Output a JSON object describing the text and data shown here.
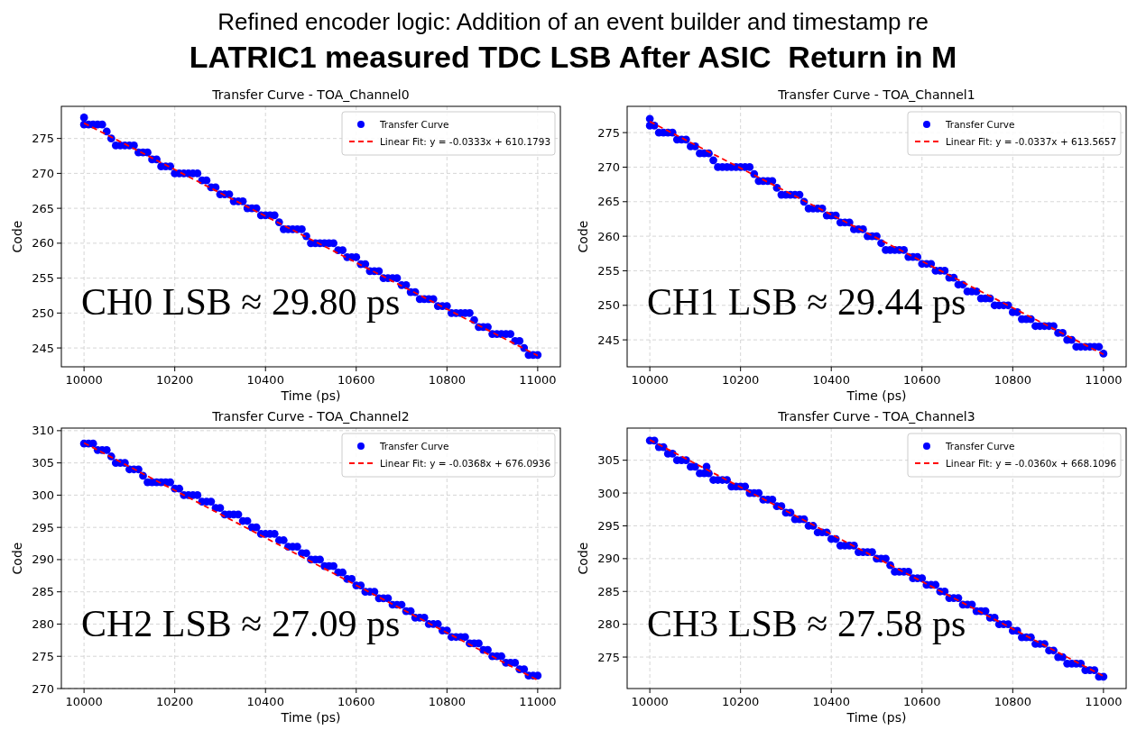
{
  "chart_data": [
    {
      "type": "other",
      "title": "Refined encoder logic: Addition of an event builder and timestamp re",
      "subtitle": "LATRIC1 measured TDC LSB After ASIC  Return in M"
    },
    {
      "type": "scatter",
      "title": "Transfer Curve - TOA_Channel0",
      "xlabel": "Time (ps)",
      "ylabel": "Code",
      "xlim": [
        9950,
        11050
      ],
      "ylim": [
        242.3,
        279.6
      ],
      "xticks": [
        10000,
        10200,
        10400,
        10600,
        10800,
        11000
      ],
      "yticks": [
        245,
        250,
        255,
        260,
        265,
        270,
        275
      ],
      "grid": true,
      "legend": "top right",
      "marker": "circle",
      "annotations": [
        "CH0 LSB ≈ 29.80 ps"
      ],
      "x": [
        10000,
        10010,
        10020,
        10030,
        10040,
        10050,
        10060,
        10070,
        10080,
        10090,
        10100,
        10110,
        10120,
        10130,
        10140,
        10150,
        10160,
        10170,
        10180,
        10190,
        10200,
        10210,
        10220,
        10230,
        10240,
        10250,
        10260,
        10270,
        10280,
        10290,
        10300,
        10310,
        10320,
        10330,
        10340,
        10350,
        10360,
        10370,
        10380,
        10390,
        10400,
        10410,
        10420,
        10430,
        10440,
        10450,
        10460,
        10470,
        10480,
        10490,
        10500,
        10510,
        10520,
        10530,
        10540,
        10550,
        10560,
        10570,
        10580,
        10590,
        10600,
        10610,
        10620,
        10630,
        10640,
        10650,
        10660,
        10670,
        10680,
        10690,
        10700,
        10710,
        10720,
        10730,
        10740,
        10750,
        10760,
        10770,
        10780,
        10790,
        10800,
        10810,
        10820,
        10830,
        10840,
        10850,
        10860,
        10870,
        10880,
        10890,
        10900,
        10910,
        10920,
        10930,
        10940,
        10950,
        10960,
        10970,
        10980,
        10990,
        11000
      ],
      "series": [
        {
          "name": "Transfer Curve",
          "type": "scatter",
          "color": "#0000ff",
          "values": [
            277,
            277,
            277,
            277,
            277,
            276,
            275,
            274,
            274,
            274,
            274,
            274,
            273,
            273,
            273,
            272,
            272,
            271,
            271,
            271,
            270,
            270,
            270,
            270,
            270,
            270,
            269,
            269,
            268,
            268,
            267,
            267,
            267,
            266,
            266,
            266,
            265,
            265,
            265,
            264,
            264,
            264,
            264,
            263,
            262,
            262,
            262,
            262,
            262,
            261,
            260,
            260,
            260,
            260,
            260,
            260,
            259,
            259,
            258,
            258,
            258,
            257,
            257,
            256,
            256,
            256,
            255,
            255,
            255,
            255,
            254,
            254,
            253,
            253,
            252,
            252,
            252,
            252,
            251,
            251,
            251,
            250,
            250,
            250,
            250,
            250,
            249,
            248,
            248,
            248,
            247,
            247,
            247,
            247,
            247,
            246,
            246,
            245,
            244,
            244,
            244
          ]
        },
        {
          "type": "scatter",
          "color": "#0000ff",
          "x": [
            10000
          ],
          "values": [
            278
          ]
        },
        {
          "name": "Linear Fit: y = -0.0333x + 610.1793",
          "type": "line",
          "color": "#ff0000",
          "line_style": "dashed",
          "marker": "none",
          "x": [
            10000,
            11000
          ],
          "values": [
            277.2,
            243.9
          ]
        }
      ]
    },
    {
      "type": "scatter",
      "title": "Transfer Curve - TOA_Channel1",
      "xlabel": "Time (ps)",
      "ylabel": "Code",
      "xlim": [
        9950,
        11050
      ],
      "ylim": [
        241.1,
        278.8
      ],
      "xticks": [
        10000,
        10200,
        10400,
        10600,
        10800,
        11000
      ],
      "yticks": [
        245,
        250,
        255,
        260,
        265,
        270,
        275
      ],
      "grid": true,
      "legend": "top right",
      "marker": "circle",
      "annotations": [
        "CH1 LSB ≈ 29.44 ps"
      ],
      "x": [
        10000,
        10010,
        10020,
        10030,
        10040,
        10050,
        10060,
        10070,
        10080,
        10090,
        10100,
        10110,
        10120,
        10130,
        10140,
        10150,
        10160,
        10170,
        10180,
        10190,
        10200,
        10210,
        10220,
        10230,
        10240,
        10250,
        10260,
        10270,
        10280,
        10290,
        10300,
        10310,
        10320,
        10330,
        10340,
        10350,
        10360,
        10370,
        10380,
        10390,
        10400,
        10410,
        10420,
        10430,
        10440,
        10450,
        10460,
        10470,
        10480,
        10490,
        10500,
        10510,
        10520,
        10530,
        10540,
        10550,
        10560,
        10570,
        10580,
        10590,
        10600,
        10610,
        10620,
        10630,
        10640,
        10650,
        10660,
        10670,
        10680,
        10690,
        10700,
        10710,
        10720,
        10730,
        10740,
        10750,
        10760,
        10770,
        10780,
        10790,
        10800,
        10810,
        10820,
        10830,
        10840,
        10850,
        10860,
        10870,
        10880,
        10890,
        10900,
        10910,
        10920,
        10930,
        10940,
        10950,
        10960,
        10970,
        10980,
        10990,
        11000
      ],
      "series": [
        {
          "name": "Transfer Curve",
          "type": "scatter",
          "color": "#0000ff",
          "values": [
            276,
            276,
            275,
            275,
            275,
            275,
            274,
            274,
            274,
            273,
            273,
            272,
            272,
            272,
            271,
            270,
            270,
            270,
            270,
            270,
            270,
            270,
            270,
            269,
            268,
            268,
            268,
            268,
            267,
            266,
            266,
            266,
            266,
            266,
            265,
            264,
            264,
            264,
            264,
            263,
            263,
            263,
            262,
            262,
            262,
            261,
            261,
            261,
            260,
            260,
            260,
            259,
            258,
            258,
            258,
            258,
            258,
            257,
            257,
            257,
            256,
            256,
            256,
            255,
            255,
            255,
            254,
            254,
            253,
            253,
            252,
            252,
            252,
            251,
            251,
            251,
            250,
            250,
            250,
            250,
            249,
            249,
            248,
            248,
            248,
            247,
            247,
            247,
            247,
            247,
            246,
            246,
            245,
            245,
            244,
            244,
            244,
            244,
            244,
            244,
            243
          ]
        },
        {
          "type": "scatter",
          "color": "#0000ff",
          "x": [
            10000
          ],
          "values": [
            277
          ]
        },
        {
          "name": "Linear Fit: y = -0.0337x + 613.5657",
          "type": "line",
          "color": "#ff0000",
          "line_style": "dashed",
          "marker": "none",
          "x": [
            10000,
            11000
          ],
          "values": [
            276.6,
            242.9
          ]
        }
      ]
    },
    {
      "type": "scatter",
      "title": "Transfer Curve - TOA_Channel2",
      "xlabel": "Time (ps)",
      "ylabel": "Code",
      "xlim": [
        9950,
        11050
      ],
      "ylim": [
        270,
        310.4
      ],
      "xticks": [
        10000,
        10200,
        10400,
        10600,
        10800,
        11000
      ],
      "yticks": [
        270,
        275,
        280,
        285,
        290,
        295,
        300,
        305,
        310
      ],
      "grid": true,
      "legend": "top right",
      "marker": "circle",
      "annotations": [
        "CH2 LSB ≈ 27.09 ps"
      ],
      "x": [
        10000,
        10010,
        10020,
        10030,
        10040,
        10050,
        10060,
        10070,
        10080,
        10090,
        10100,
        10110,
        10120,
        10130,
        10140,
        10150,
        10160,
        10170,
        10180,
        10190,
        10200,
        10210,
        10220,
        10230,
        10240,
        10250,
        10260,
        10270,
        10280,
        10290,
        10300,
        10310,
        10320,
        10330,
        10340,
        10350,
        10360,
        10370,
        10380,
        10390,
        10400,
        10410,
        10420,
        10430,
        10440,
        10450,
        10460,
        10470,
        10480,
        10490,
        10500,
        10510,
        10520,
        10530,
        10540,
        10550,
        10560,
        10570,
        10580,
        10590,
        10600,
        10610,
        10620,
        10630,
        10640,
        10650,
        10660,
        10670,
        10680,
        10690,
        10700,
        10710,
        10720,
        10730,
        10740,
        10750,
        10760,
        10770,
        10780,
        10790,
        10800,
        10810,
        10820,
        10830,
        10840,
        10850,
        10860,
        10870,
        10880,
        10890,
        10900,
        10910,
        10920,
        10930,
        10940,
        10950,
        10960,
        10970,
        10980,
        10990,
        11000
      ],
      "series": [
        {
          "name": "Transfer Curve",
          "type": "scatter",
          "color": "#0000ff",
          "values": [
            308,
            308,
            308,
            307,
            307,
            307,
            306,
            305,
            305,
            305,
            304,
            304,
            304,
            303,
            302,
            302,
            302,
            302,
            302,
            302,
            301,
            301,
            300,
            300,
            300,
            300,
            299,
            299,
            299,
            298,
            298,
            297,
            297,
            297,
            297,
            296,
            296,
            295,
            295,
            294,
            294,
            294,
            294,
            293,
            293,
            292,
            292,
            292,
            291,
            291,
            290,
            290,
            290,
            289,
            289,
            289,
            288,
            288,
            287,
            287,
            286,
            286,
            285,
            285,
            285,
            284,
            284,
            284,
            283,
            283,
            283,
            282,
            282,
            281,
            281,
            281,
            280,
            280,
            280,
            279,
            279,
            278,
            278,
            278,
            278,
            277,
            277,
            277,
            276,
            276,
            275,
            275,
            275,
            274,
            274,
            274,
            273,
            273,
            272,
            272,
            272
          ]
        },
        {
          "name": "Linear Fit: y = -0.0368x + 676.0936",
          "type": "line",
          "color": "#ff0000",
          "line_style": "dashed",
          "marker": "none",
          "x": [
            10000,
            11000
          ],
          "values": [
            308.1,
            271.3
          ]
        }
      ]
    },
    {
      "type": "scatter",
      "title": "Transfer Curve - TOA_Channel3",
      "xlabel": "Time (ps)",
      "ylabel": "Code",
      "xlim": [
        9950,
        11050
      ],
      "ylim": [
        270.2,
        309.9
      ],
      "xticks": [
        10000,
        10200,
        10400,
        10600,
        10800,
        11000
      ],
      "yticks": [
        275,
        280,
        285,
        290,
        295,
        300,
        305
      ],
      "grid": true,
      "legend": "top right",
      "marker": "circle",
      "annotations": [
        "CH3 LSB ≈ 27.58 ps"
      ],
      "x": [
        10000,
        10010,
        10020,
        10030,
        10040,
        10050,
        10060,
        10070,
        10080,
        10090,
        10100,
        10110,
        10120,
        10130,
        10140,
        10150,
        10160,
        10170,
        10180,
        10190,
        10200,
        10210,
        10220,
        10230,
        10240,
        10250,
        10260,
        10270,
        10280,
        10290,
        10300,
        10310,
        10320,
        10330,
        10340,
        10350,
        10360,
        10370,
        10380,
        10390,
        10400,
        10410,
        10420,
        10430,
        10440,
        10450,
        10460,
        10470,
        10480,
        10490,
        10500,
        10510,
        10520,
        10530,
        10540,
        10550,
        10560,
        10570,
        10580,
        10590,
        10600,
        10610,
        10620,
        10630,
        10640,
        10650,
        10660,
        10670,
        10680,
        10690,
        10700,
        10710,
        10720,
        10730,
        10740,
        10750,
        10760,
        10770,
        10780,
        10790,
        10800,
        10810,
        10820,
        10830,
        10840,
        10850,
        10860,
        10870,
        10880,
        10890,
        10900,
        10910,
        10920,
        10930,
        10940,
        10950,
        10960,
        10970,
        10980,
        10990,
        11000
      ],
      "series": [
        {
          "name": "Transfer Curve",
          "type": "scatter",
          "color": "#0000ff",
          "values": [
            308,
            308,
            307,
            307,
            306,
            306,
            305,
            305,
            305,
            304,
            304,
            303,
            303,
            303,
            302,
            302,
            302,
            302,
            301,
            301,
            301,
            301,
            300,
            300,
            300,
            299,
            299,
            299,
            298,
            298,
            297,
            297,
            296,
            296,
            296,
            295,
            295,
            294,
            294,
            294,
            293,
            293,
            292,
            292,
            292,
            292,
            291,
            291,
            291,
            291,
            290,
            290,
            290,
            289,
            288,
            288,
            288,
            288,
            287,
            287,
            287,
            286,
            286,
            286,
            285,
            285,
            284,
            284,
            284,
            283,
            283,
            283,
            282,
            282,
            282,
            281,
            281,
            280,
            280,
            280,
            279,
            279,
            278,
            278,
            278,
            277,
            277,
            277,
            276,
            276,
            275,
            275,
            274,
            274,
            274,
            274,
            273,
            273,
            273,
            272,
            272
          ]
        },
        {
          "type": "scatter",
          "color": "#0000ff",
          "x": [
            10125
          ],
          "values": [
            304
          ]
        },
        {
          "name": "Linear Fit: y = -0.0360x + 668.1096",
          "type": "line",
          "color": "#ff0000",
          "line_style": "dashed",
          "marker": "none",
          "x": [
            10000,
            11000
          ],
          "values": [
            308.1,
            272.1
          ]
        }
      ]
    }
  ]
}
